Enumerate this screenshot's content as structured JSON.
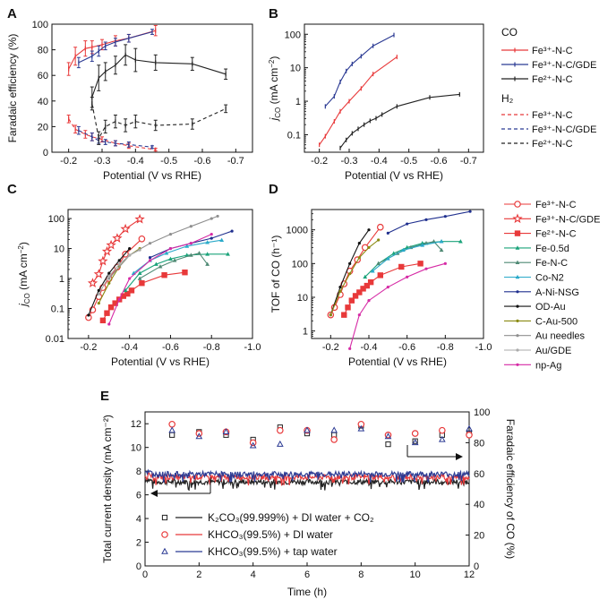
{
  "chart_data": [
    {
      "panel": "A",
      "type": "line",
      "xlabel": "Potential (V vs RHE)",
      "ylabel": "Faradaic efficiency (%)",
      "xlim": [
        -0.15,
        -0.75
      ],
      "ylim": [
        0,
        100
      ],
      "xticks": [
        "-0.2",
        "-0.3",
        "-0.4",
        "-0.5",
        "-0.6",
        "-0.7"
      ],
      "yticks": [
        "0",
        "20",
        "40",
        "60",
        "80",
        "100"
      ],
      "series": [
        {
          "name": "Fe³⁺-N-C (CO)",
          "color": "#e8393a",
          "style": "solid",
          "marker": "tick",
          "x": [
            -0.2,
            -0.22,
            -0.25,
            -0.27,
            -0.3,
            -0.34,
            -0.38,
            -0.46
          ],
          "y": [
            65,
            75,
            81,
            82,
            84,
            87,
            89,
            95
          ],
          "err": [
            5,
            7,
            6,
            5,
            4,
            4,
            3,
            4
          ]
        },
        {
          "name": "Fe³⁺-N-C/GDE (CO)",
          "color": "#2b3a93",
          "style": "solid",
          "marker": "tick",
          "x": [
            -0.23,
            -0.27,
            -0.29,
            -0.31,
            -0.34,
            -0.38,
            -0.45
          ],
          "y": [
            70,
            75,
            79,
            83,
            86,
            89,
            94
          ],
          "err": [
            4,
            4,
            4,
            3,
            3,
            3,
            2
          ]
        },
        {
          "name": "Fe²⁺-N-C (CO)",
          "color": "#222222",
          "style": "solid",
          "marker": "tick",
          "x": [
            -0.27,
            -0.29,
            -0.31,
            -0.34,
            -0.37,
            -0.4,
            -0.46,
            -0.57,
            -0.67
          ],
          "y": [
            43,
            58,
            63,
            68,
            76,
            72,
            70,
            69,
            61
          ],
          "err": [
            8,
            10,
            7,
            7,
            8,
            9,
            6,
            5,
            4
          ]
        },
        {
          "name": "Fe³⁺-N-C (H₂)",
          "color": "#e8393a",
          "style": "dashed",
          "marker": "tick",
          "x": [
            -0.2,
            -0.22,
            -0.25,
            -0.27,
            -0.3,
            -0.34,
            -0.38,
            -0.46
          ],
          "y": [
            26,
            18,
            14,
            12,
            10,
            7,
            5,
            2
          ],
          "err": [
            3,
            3,
            3,
            3,
            2,
            2,
            2,
            1
          ]
        },
        {
          "name": "Fe³⁺-N-C/GDE (H₂)",
          "color": "#2b3a93",
          "style": "dashed",
          "marker": "tick",
          "x": [
            -0.23,
            -0.27,
            -0.29,
            -0.31,
            -0.34,
            -0.38,
            -0.45
          ],
          "y": [
            17,
            12,
            9,
            8,
            7,
            6,
            4
          ],
          "err": [
            3,
            3,
            2,
            2,
            2,
            2,
            1
          ]
        },
        {
          "name": "Fe²⁺-N-C (H₂)",
          "color": "#222222",
          "style": "dashed",
          "marker": "tick",
          "x": [
            -0.27,
            -0.29,
            -0.31,
            -0.34,
            -0.37,
            -0.4,
            -0.46,
            -0.57,
            -0.67
          ],
          "y": [
            38,
            11,
            20,
            24,
            21,
            24,
            21,
            22,
            34
          ],
          "err": [
            5,
            5,
            5,
            5,
            5,
            5,
            4,
            4,
            3
          ]
        }
      ]
    },
    {
      "panel": "B",
      "type": "line",
      "xlabel": "Potential (V vs RHE)",
      "ylabel": "j_CO (mA cm⁻²)",
      "scale": "log",
      "xlim": [
        -0.15,
        -0.75
      ],
      "ylim": [
        0.03,
        200
      ],
      "xticks": [
        "-0.2",
        "-0.3",
        "-0.4",
        "-0.5",
        "-0.6",
        "-0.7"
      ],
      "yticks": [
        "0.1",
        "1",
        "10",
        "100"
      ],
      "legend_co_title": "CO",
      "legend_h2_title": "H₂",
      "series": [
        {
          "name": "Fe³⁺-N-C",
          "color": "#e8393a",
          "style": "solid",
          "marker": "tick",
          "x": [
            -0.2,
            -0.22,
            -0.25,
            -0.27,
            -0.3,
            -0.34,
            -0.38,
            -0.46
          ],
          "y": [
            0.05,
            0.09,
            0.25,
            0.5,
            1.0,
            2.4,
            6.5,
            21
          ]
        },
        {
          "name": "Fe³⁺-N-C/GDE",
          "color": "#2b3a93",
          "style": "solid",
          "marker": "tick",
          "x": [
            -0.22,
            -0.25,
            -0.27,
            -0.29,
            -0.31,
            -0.34,
            -0.38,
            -0.45
          ],
          "y": [
            0.7,
            1.4,
            3.8,
            8,
            13,
            22,
            45,
            95
          ]
        },
        {
          "name": "Fe²⁺-N-C",
          "color": "#222222",
          "style": "solid",
          "marker": "tick",
          "x": [
            -0.27,
            -0.29,
            -0.31,
            -0.33,
            -0.35,
            -0.37,
            -0.39,
            -0.41,
            -0.46,
            -0.57,
            -0.67
          ],
          "y": [
            0.04,
            0.07,
            0.11,
            0.15,
            0.2,
            0.26,
            0.31,
            0.4,
            0.7,
            1.3,
            1.6
          ]
        }
      ]
    },
    {
      "panel": "C",
      "type": "line",
      "xlabel": "Potential (V vs RHE)",
      "ylabel": "j_CO (mA cm⁻²)",
      "scale": "log",
      "xlim": [
        -0.1,
        -1.0
      ],
      "ylim": [
        0.01,
        200
      ],
      "xticks": [
        "-0.2",
        "-0.4",
        "-0.6",
        "-0.8",
        "-1.0"
      ],
      "yticks": [
        "0.01",
        "0.1",
        "1",
        "10",
        "100"
      ],
      "series": [
        {
          "name": "Fe³⁺-N-C",
          "color": "#e8393a",
          "marker": "o-open",
          "x": [
            -0.2,
            -0.22,
            -0.25,
            -0.27,
            -0.3,
            -0.34,
            -0.38,
            -0.46
          ],
          "y": [
            0.05,
            0.09,
            0.25,
            0.5,
            1.0,
            2.4,
            6.5,
            21
          ]
        },
        {
          "name": "Fe³⁺-N-C/GDE",
          "color": "#e8393a",
          "marker": "star-open",
          "x": [
            -0.22,
            -0.25,
            -0.27,
            -0.29,
            -0.31,
            -0.34,
            -0.38,
            -0.45
          ],
          "y": [
            0.7,
            1.4,
            3.8,
            8,
            13,
            22,
            45,
            95
          ]
        },
        {
          "name": "Fe²⁺-N-C",
          "color": "#e8393a",
          "marker": "square-filled",
          "x": [
            -0.27,
            -0.29,
            -0.31,
            -0.33,
            -0.35,
            -0.37,
            -0.39,
            -0.41,
            -0.46,
            -0.57,
            -0.67
          ],
          "y": [
            0.04,
            0.07,
            0.11,
            0.15,
            0.2,
            0.26,
            0.31,
            0.4,
            0.7,
            1.3,
            1.6
          ]
        },
        {
          "name": "Fe-0.5d",
          "color": "#1aa37a",
          "marker": "tri",
          "x": [
            -0.38,
            -0.45,
            -0.53,
            -0.6,
            -0.68,
            -0.78,
            -0.88
          ],
          "y": [
            0.4,
            1.5,
            3,
            4.5,
            6,
            6.5,
            6.5
          ]
        },
        {
          "name": "Fe-N-C",
          "color": "#4f8a74",
          "marker": "tri",
          "x": [
            -0.45,
            -0.55,
            -0.62,
            -0.7,
            -0.74,
            -0.78
          ],
          "y": [
            1.0,
            2.5,
            4,
            6,
            7,
            3
          ]
        },
        {
          "name": "Co-N2",
          "color": "#29a9c9",
          "marker": "tri",
          "x": [
            -0.42,
            -0.5,
            -0.58,
            -0.68,
            -0.78,
            -0.85
          ],
          "y": [
            1.5,
            4,
            7,
            12,
            16,
            19
          ]
        },
        {
          "name": "A-Ni-NSG",
          "color": "#1f2f8e",
          "marker": "dot",
          "x": [
            -0.5,
            -0.6,
            -0.7,
            -0.8,
            -0.9
          ],
          "y": [
            5,
            10,
            15,
            22,
            38
          ]
        },
        {
          "name": "OD-Au",
          "color": "#111111",
          "marker": "dot",
          "x": [
            -0.2,
            -0.25,
            -0.3,
            -0.35,
            -0.4
          ],
          "y": [
            0.06,
            0.4,
            1.5,
            4,
            10
          ]
        },
        {
          "name": "C-Au-500",
          "color": "#8a8a12",
          "marker": "dot",
          "x": [
            -0.25,
            -0.3,
            -0.35,
            -0.4,
            -0.45
          ],
          "y": [
            0.15,
            0.7,
            2.5,
            6,
            10
          ]
        },
        {
          "name": "Au needles",
          "color": "#8f8f8f",
          "marker": "dot",
          "x": [
            -0.3,
            -0.4,
            -0.5,
            -0.6,
            -0.7,
            -0.8,
            -0.83
          ],
          "y": [
            1,
            6,
            15,
            30,
            55,
            100,
            120
          ]
        },
        {
          "name": "Au/GDE",
          "color": "#aaaaaa",
          "marker": "dot",
          "x": [
            -0.25,
            -0.3,
            -0.35,
            -0.4,
            -0.45
          ],
          "y": [
            0.3,
            1.2,
            3,
            6,
            9
          ]
        },
        {
          "name": "np-Ag",
          "color": "#d62aa5",
          "marker": "dot",
          "x": [
            -0.3,
            -0.35,
            -0.4,
            -0.5,
            -0.6,
            -0.7,
            -0.8
          ],
          "y": [
            0.03,
            0.2,
            1,
            4,
            10,
            15,
            30
          ]
        }
      ]
    },
    {
      "panel": "D",
      "type": "line",
      "xlabel": "Potential (V vs RHE)",
      "ylabel": "TOF of CO (h⁻¹)",
      "scale": "log",
      "xlim": [
        -0.1,
        -1.0
      ],
      "ylim": [
        0.6,
        4000
      ],
      "xticks": [
        "-0.2",
        "-0.4",
        "-0.6",
        "-0.8",
        "-1.0"
      ],
      "yticks": [
        "1",
        "10",
        "100",
        "1000"
      ],
      "series": [
        {
          "name": "Fe³⁺-N-C",
          "color": "#e8393a",
          "marker": "o-open",
          "x": [
            -0.2,
            -0.22,
            -0.25,
            -0.27,
            -0.3,
            -0.34,
            -0.38,
            -0.46
          ],
          "y": [
            3,
            5,
            12,
            25,
            60,
            130,
            300,
            1200
          ]
        },
        {
          "name": "Fe²⁺-N-C",
          "color": "#e8393a",
          "marker": "square-filled",
          "x": [
            -0.27,
            -0.29,
            -0.31,
            -0.33,
            -0.35,
            -0.37,
            -0.39,
            -0.41,
            -0.46,
            -0.57,
            -0.67
          ],
          "y": [
            3,
            5,
            8,
            11,
            14,
            18,
            22,
            28,
            45,
            80,
            100
          ]
        },
        {
          "name": "Fe-0.5d",
          "color": "#1aa37a",
          "marker": "tri",
          "x": [
            -0.38,
            -0.45,
            -0.53,
            -0.6,
            -0.68,
            -0.78,
            -0.88
          ],
          "y": [
            40,
            100,
            200,
            300,
            400,
            450,
            450
          ]
        },
        {
          "name": "Fe-N-C",
          "color": "#4f8a74",
          "marker": "tri",
          "x": [
            -0.45,
            -0.55,
            -0.62,
            -0.7,
            -0.74,
            -0.78
          ],
          "y": [
            100,
            200,
            300,
            400,
            450,
            250
          ]
        },
        {
          "name": "Co-N2",
          "color": "#29a9c9",
          "marker": "tri",
          "x": [
            -0.42,
            -0.5,
            -0.58,
            -0.68,
            -0.78
          ],
          "y": [
            60,
            140,
            250,
            350,
            450
          ]
        },
        {
          "name": "A-Ni-NSG",
          "color": "#1f2f8e",
          "marker": "dot",
          "x": [
            -0.5,
            -0.6,
            -0.7,
            -0.8,
            -0.93
          ],
          "y": [
            800,
            1500,
            2000,
            2500,
            3500
          ]
        },
        {
          "name": "OD-Au",
          "color": "#111111",
          "marker": "dot",
          "x": [
            -0.2,
            -0.25,
            -0.3,
            -0.35,
            -0.4
          ],
          "y": [
            3,
            20,
            100,
            400,
            1000
          ]
        },
        {
          "name": "C-Au-500",
          "color": "#8a8a12",
          "marker": "dot",
          "x": [
            -0.2,
            -0.25,
            -0.3,
            -0.35,
            -0.4,
            -0.45
          ],
          "y": [
            3,
            15,
            50,
            150,
            300,
            500
          ]
        },
        {
          "name": "np-Ag",
          "color": "#d62aa5",
          "marker": "dot",
          "x": [
            -0.3,
            -0.35,
            -0.4,
            -0.5,
            -0.6,
            -0.7,
            -0.8
          ],
          "y": [
            0.3,
            3,
            8,
            20,
            40,
            70,
            100
          ]
        }
      ]
    },
    {
      "panel": "E",
      "type": "scatter",
      "xlabel": "Time (h)",
      "ylabel": "Total current density (mA cm⁻²)",
      "ylabel_right": "Faradaic efficiency of CO (%)",
      "xlim": [
        0,
        12
      ],
      "ylim": [
        0,
        13
      ],
      "ylim_right": [
        0,
        100
      ],
      "xticks": [
        "0",
        "2",
        "4",
        "6",
        "8",
        "10",
        "12"
      ],
      "yticks": [
        "0",
        "2",
        "4",
        "6",
        "8",
        "10",
        "12"
      ],
      "yticks_right": [
        "0",
        "20",
        "40",
        "60",
        "80",
        "100"
      ],
      "series": [
        {
          "name": "K₂CO₃(99.999%) + DI water + CO₂",
          "color": "#222222",
          "marker": "square-open",
          "current_level": 7.1,
          "fe_x": [
            1,
            2,
            3,
            4,
            5,
            6,
            7,
            8,
            9,
            10,
            11,
            12
          ],
          "fe_y": [
            85,
            87,
            85,
            82,
            90,
            86,
            85,
            91,
            79,
            81,
            85,
            86
          ]
        },
        {
          "name": "KHCO₃(99.5%) + DI water",
          "color": "#e8393a",
          "marker": "o-open",
          "current_level": 7.5,
          "fe_x": [
            1,
            2,
            3,
            4,
            5,
            6,
            7,
            8,
            9,
            10,
            11,
            12
          ],
          "fe_y": [
            92,
            86,
            87,
            80,
            88,
            88,
            82,
            92,
            85,
            86,
            88,
            85
          ]
        },
        {
          "name": "KHCO₃(99.5%) + tap water",
          "color": "#2b3a93",
          "marker": "tri-open",
          "current_level": 7.75,
          "fe_x": [
            1,
            2,
            3,
            4,
            5,
            6,
            7,
            8,
            9,
            10,
            11,
            12
          ],
          "fe_y": [
            88,
            84,
            87,
            78,
            79,
            88,
            88,
            89,
            84,
            80,
            82,
            89
          ]
        }
      ]
    }
  ],
  "panel_labels": [
    "A",
    "B",
    "C",
    "D",
    "E"
  ]
}
